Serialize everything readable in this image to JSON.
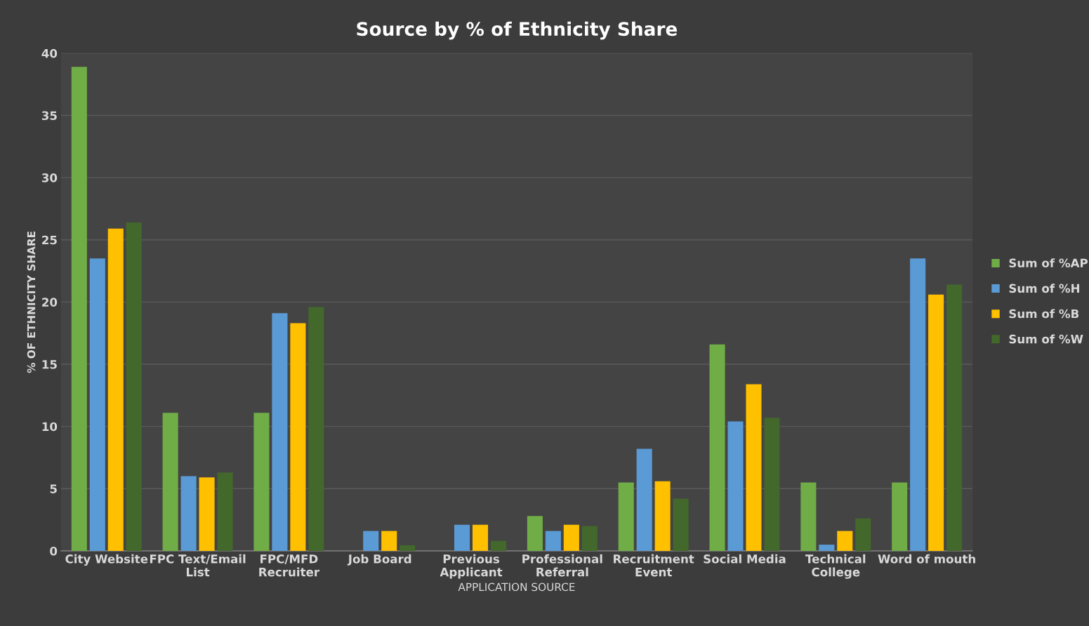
{
  "chart_data": {
    "type": "bar",
    "title": "Source by % of Ethnicity Share",
    "xlabel": "APPLICATION SOURCE",
    "ylabel": "% OF ETHNICITY SHARE",
    "categories": [
      "City Website",
      "FPC Text/Email\nList",
      "FPC/MFD\nRecruiter",
      "Job Board",
      "Previous\nApplicant",
      "Professional\nReferral",
      "Recruitment\nEvent",
      "Social Media",
      "Technical\nCollege",
      "Word of mouth"
    ],
    "series": [
      {
        "name": "Sum of %AP",
        "color": "#70ad47",
        "values": [
          38.9,
          11.1,
          11.1,
          0,
          0,
          2.8,
          5.5,
          16.6,
          5.5,
          5.5
        ]
      },
      {
        "name": "Sum of %H",
        "color": "#5b9bd5",
        "values": [
          23.5,
          6.0,
          19.1,
          1.6,
          2.1,
          1.6,
          8.2,
          10.4,
          0.5,
          23.5
        ]
      },
      {
        "name": "Sum of %B",
        "color": "#ffc000",
        "values": [
          25.9,
          5.9,
          18.3,
          1.6,
          2.1,
          2.1,
          5.6,
          13.4,
          1.6,
          20.6
        ]
      },
      {
        "name": "Sum of %W",
        "color": "#43682b",
        "values": [
          26.4,
          6.3,
          19.6,
          0.45,
          0.8,
          2.0,
          4.2,
          10.7,
          2.6,
          21.4
        ]
      }
    ],
    "ylim": [
      0,
      40
    ],
    "yticks": [
      0,
      5,
      10,
      15,
      20,
      25,
      30,
      35,
      40
    ],
    "grid": "y",
    "legend": "right"
  }
}
